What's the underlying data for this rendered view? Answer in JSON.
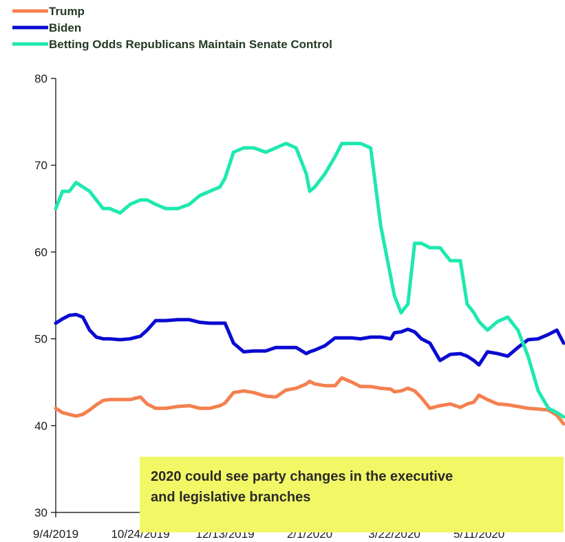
{
  "chart_data": {
    "type": "line",
    "title": "",
    "xlabel": "",
    "ylabel": "",
    "ylim": [
      30,
      80
    ],
    "yticks": [
      30,
      40,
      50,
      60,
      70,
      80
    ],
    "xlim": [
      "2019-09-04",
      "2020-06-30"
    ],
    "xtick_labels": [
      "9/4/2019",
      "10/24/2019",
      "12/13/2019",
      "2/1/2020",
      "3/22/2020",
      "5/11/2020"
    ],
    "xtick_dates": [
      "2019-09-04",
      "2019-10-24",
      "2019-12-13",
      "2020-02-01",
      "2020-03-22",
      "2020-05-11"
    ],
    "grid": false,
    "legend_position": "top-left",
    "series": [
      {
        "name": "Trump",
        "color": "#f4804f",
        "x": [
          "2019-09-04",
          "2019-09-08",
          "2019-09-12",
          "2019-09-16",
          "2019-09-20",
          "2019-09-24",
          "2019-09-28",
          "2019-10-02",
          "2019-10-06",
          "2019-10-12",
          "2019-10-18",
          "2019-10-24",
          "2019-10-28",
          "2019-11-02",
          "2019-11-08",
          "2019-11-15",
          "2019-11-22",
          "2019-11-28",
          "2019-12-04",
          "2019-12-10",
          "2019-12-13",
          "2019-12-18",
          "2019-12-24",
          "2019-12-30",
          "2020-01-06",
          "2020-01-12",
          "2020-01-18",
          "2020-01-24",
          "2020-01-30",
          "2020-02-01",
          "2020-02-04",
          "2020-02-10",
          "2020-02-16",
          "2020-02-20",
          "2020-02-26",
          "2020-03-02",
          "2020-03-08",
          "2020-03-14",
          "2020-03-20",
          "2020-03-22",
          "2020-03-26",
          "2020-03-30",
          "2020-04-03",
          "2020-04-07",
          "2020-04-12",
          "2020-04-18",
          "2020-04-24",
          "2020-04-30",
          "2020-05-04",
          "2020-05-08",
          "2020-05-11",
          "2020-05-16",
          "2020-05-22",
          "2020-05-28",
          "2020-06-03",
          "2020-06-09",
          "2020-06-15",
          "2020-06-21",
          "2020-06-26",
          "2020-06-30"
        ],
        "values": [
          42.0,
          41.5,
          41.3,
          41.1,
          41.3,
          41.8,
          42.4,
          42.9,
          43.0,
          43.0,
          43.0,
          43.3,
          42.5,
          42.0,
          42.0,
          42.2,
          42.3,
          42.0,
          42.0,
          42.3,
          42.6,
          43.8,
          44.0,
          43.8,
          43.4,
          43.3,
          44.1,
          44.3,
          44.8,
          45.1,
          44.8,
          44.6,
          44.6,
          45.5,
          45.0,
          44.5,
          44.5,
          44.3,
          44.2,
          43.9,
          44.0,
          44.3,
          44.0,
          43.2,
          42.0,
          42.3,
          42.5,
          42.1,
          42.5,
          42.7,
          43.5,
          43.0,
          42.5,
          42.4,
          42.2,
          42.0,
          41.9,
          41.8,
          41.2,
          40.2
        ]
      },
      {
        "name": "Biden",
        "color": "#0a0ad2",
        "x": [
          "2019-09-04",
          "2019-09-08",
          "2019-09-12",
          "2019-09-16",
          "2019-09-20",
          "2019-09-24",
          "2019-09-28",
          "2019-10-02",
          "2019-10-06",
          "2019-10-12",
          "2019-10-18",
          "2019-10-24",
          "2019-10-28",
          "2019-11-02",
          "2019-11-08",
          "2019-11-15",
          "2019-11-22",
          "2019-11-28",
          "2019-12-04",
          "2019-12-10",
          "2019-12-13",
          "2019-12-18",
          "2019-12-24",
          "2019-12-30",
          "2020-01-06",
          "2020-01-12",
          "2020-01-18",
          "2020-01-24",
          "2020-01-30",
          "2020-02-01",
          "2020-02-04",
          "2020-02-10",
          "2020-02-16",
          "2020-02-20",
          "2020-02-26",
          "2020-03-02",
          "2020-03-08",
          "2020-03-14",
          "2020-03-20",
          "2020-03-22",
          "2020-03-26",
          "2020-03-30",
          "2020-04-03",
          "2020-04-07",
          "2020-04-12",
          "2020-04-18",
          "2020-04-24",
          "2020-04-30",
          "2020-05-04",
          "2020-05-08",
          "2020-05-11",
          "2020-05-16",
          "2020-05-22",
          "2020-05-28",
          "2020-06-03",
          "2020-06-09",
          "2020-06-15",
          "2020-06-21",
          "2020-06-26",
          "2020-06-30"
        ],
        "values": [
          51.8,
          52.3,
          52.7,
          52.8,
          52.5,
          51.0,
          50.2,
          50.0,
          50.0,
          49.9,
          50.0,
          50.3,
          51.0,
          52.1,
          52.1,
          52.2,
          52.2,
          51.9,
          51.8,
          51.8,
          51.8,
          49.5,
          48.5,
          48.6,
          48.6,
          49.0,
          49.0,
          49.0,
          48.3,
          48.5,
          48.7,
          49.2,
          50.1,
          50.1,
          50.1,
          50.0,
          50.2,
          50.2,
          50.0,
          50.7,
          50.8,
          51.1,
          50.8,
          50.0,
          49.5,
          47.5,
          48.2,
          48.3,
          48.0,
          47.5,
          47.0,
          48.5,
          48.3,
          48.0,
          49.0,
          49.9,
          50.0,
          50.5,
          51.0,
          49.5
        ]
      },
      {
        "name": "Betting Odds Republicans Maintain Senate Control",
        "color": "#1ee8b0",
        "x": [
          "2019-09-04",
          "2019-09-08",
          "2019-09-12",
          "2019-09-16",
          "2019-09-20",
          "2019-09-24",
          "2019-09-28",
          "2019-10-02",
          "2019-10-06",
          "2019-10-12",
          "2019-10-18",
          "2019-10-24",
          "2019-10-28",
          "2019-11-02",
          "2019-11-08",
          "2019-11-15",
          "2019-11-22",
          "2019-11-28",
          "2019-12-04",
          "2019-12-10",
          "2019-12-13",
          "2019-12-18",
          "2019-12-24",
          "2019-12-30",
          "2020-01-06",
          "2020-01-12",
          "2020-01-18",
          "2020-01-24",
          "2020-01-30",
          "2020-02-01",
          "2020-02-04",
          "2020-02-10",
          "2020-02-16",
          "2020-02-20",
          "2020-02-26",
          "2020-03-02",
          "2020-03-08",
          "2020-03-14",
          "2020-03-20",
          "2020-03-22",
          "2020-03-26",
          "2020-03-30",
          "2020-04-03",
          "2020-04-07",
          "2020-04-12",
          "2020-04-18",
          "2020-04-24",
          "2020-04-30",
          "2020-05-04",
          "2020-05-08",
          "2020-05-11",
          "2020-05-16",
          "2020-05-22",
          "2020-05-28",
          "2020-06-03",
          "2020-06-09",
          "2020-06-15",
          "2020-06-21",
          "2020-06-26",
          "2020-06-30"
        ],
        "values": [
          65.0,
          67.0,
          67.0,
          68.0,
          67.5,
          67.0,
          66.0,
          65.0,
          65.0,
          64.5,
          65.5,
          66.0,
          66.0,
          65.5,
          65.0,
          65.0,
          65.5,
          66.5,
          67.0,
          67.5,
          68.5,
          71.5,
          72.0,
          72.0,
          71.5,
          72.0,
          72.5,
          72.0,
          69.0,
          67.0,
          67.5,
          69.0,
          71.0,
          72.5,
          72.5,
          72.5,
          72.0,
          63.0,
          57.0,
          55.0,
          53.0,
          54.0,
          61.0,
          61.0,
          60.5,
          60.5,
          59.0,
          59.0,
          54.0,
          53.0,
          52.0,
          51.0,
          52.0,
          52.5,
          51.0,
          48.0,
          44.0,
          42.0,
          41.5,
          41.0
        ]
      }
    ],
    "annotation": {
      "line1": "2020 could see party changes in the executive",
      "line2": "and legislative branches",
      "background": "#f2f766"
    }
  }
}
